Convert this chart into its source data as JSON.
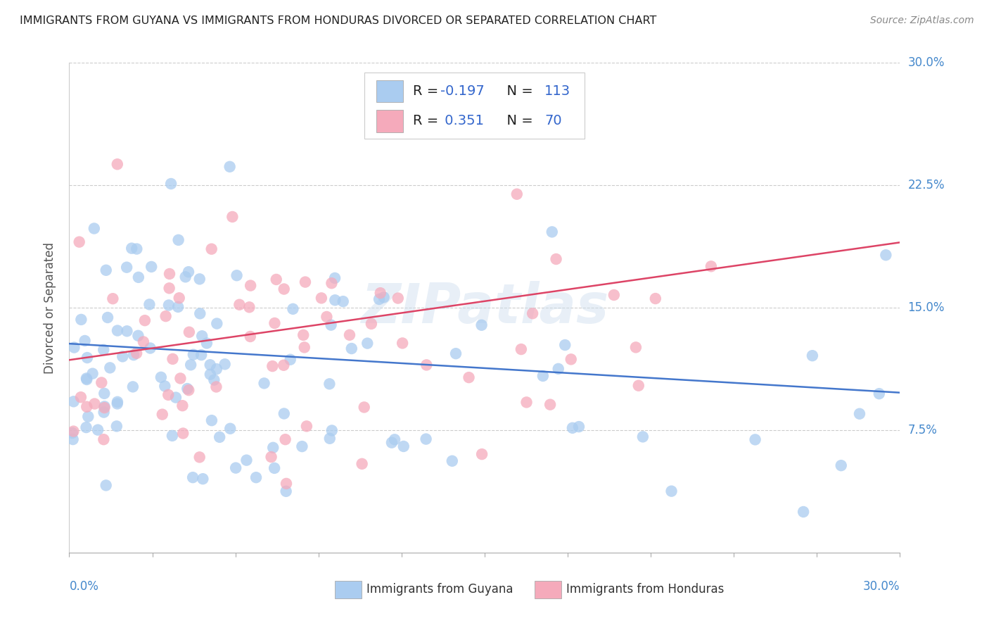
{
  "title": "IMMIGRANTS FROM GUYANA VS IMMIGRANTS FROM HONDURAS DIVORCED OR SEPARATED CORRELATION CHART",
  "source": "Source: ZipAtlas.com",
  "ylabel": "Divorced or Separated",
  "guyana_R": "-0.197",
  "guyana_N": "113",
  "honduras_R": "0.351",
  "honduras_N": "70",
  "guyana_color": "#aaccf0",
  "honduras_color": "#f5aabb",
  "guyana_line_color": "#4477cc",
  "honduras_line_color": "#dd4466",
  "title_color": "#222222",
  "axis_label_color": "#4488cc",
  "legend_R_color": "#3366cc",
  "background_color": "#ffffff",
  "grid_color": "#cccccc",
  "watermark": "ZIPatlas",
  "xlim": [
    0.0,
    0.3
  ],
  "ylim": [
    0.0,
    0.3
  ],
  "ytick_vals": [
    0.075,
    0.15,
    0.225,
    0.3
  ],
  "ytick_labels": [
    "7.5%",
    "15.0%",
    "22.5%",
    "30.0%"
  ],
  "guyana_trend_x": [
    0.0,
    0.3
  ],
  "guyana_trend_y": [
    0.128,
    0.098
  ],
  "honduras_trend_x": [
    0.0,
    0.3
  ],
  "honduras_trend_y": [
    0.118,
    0.19
  ]
}
